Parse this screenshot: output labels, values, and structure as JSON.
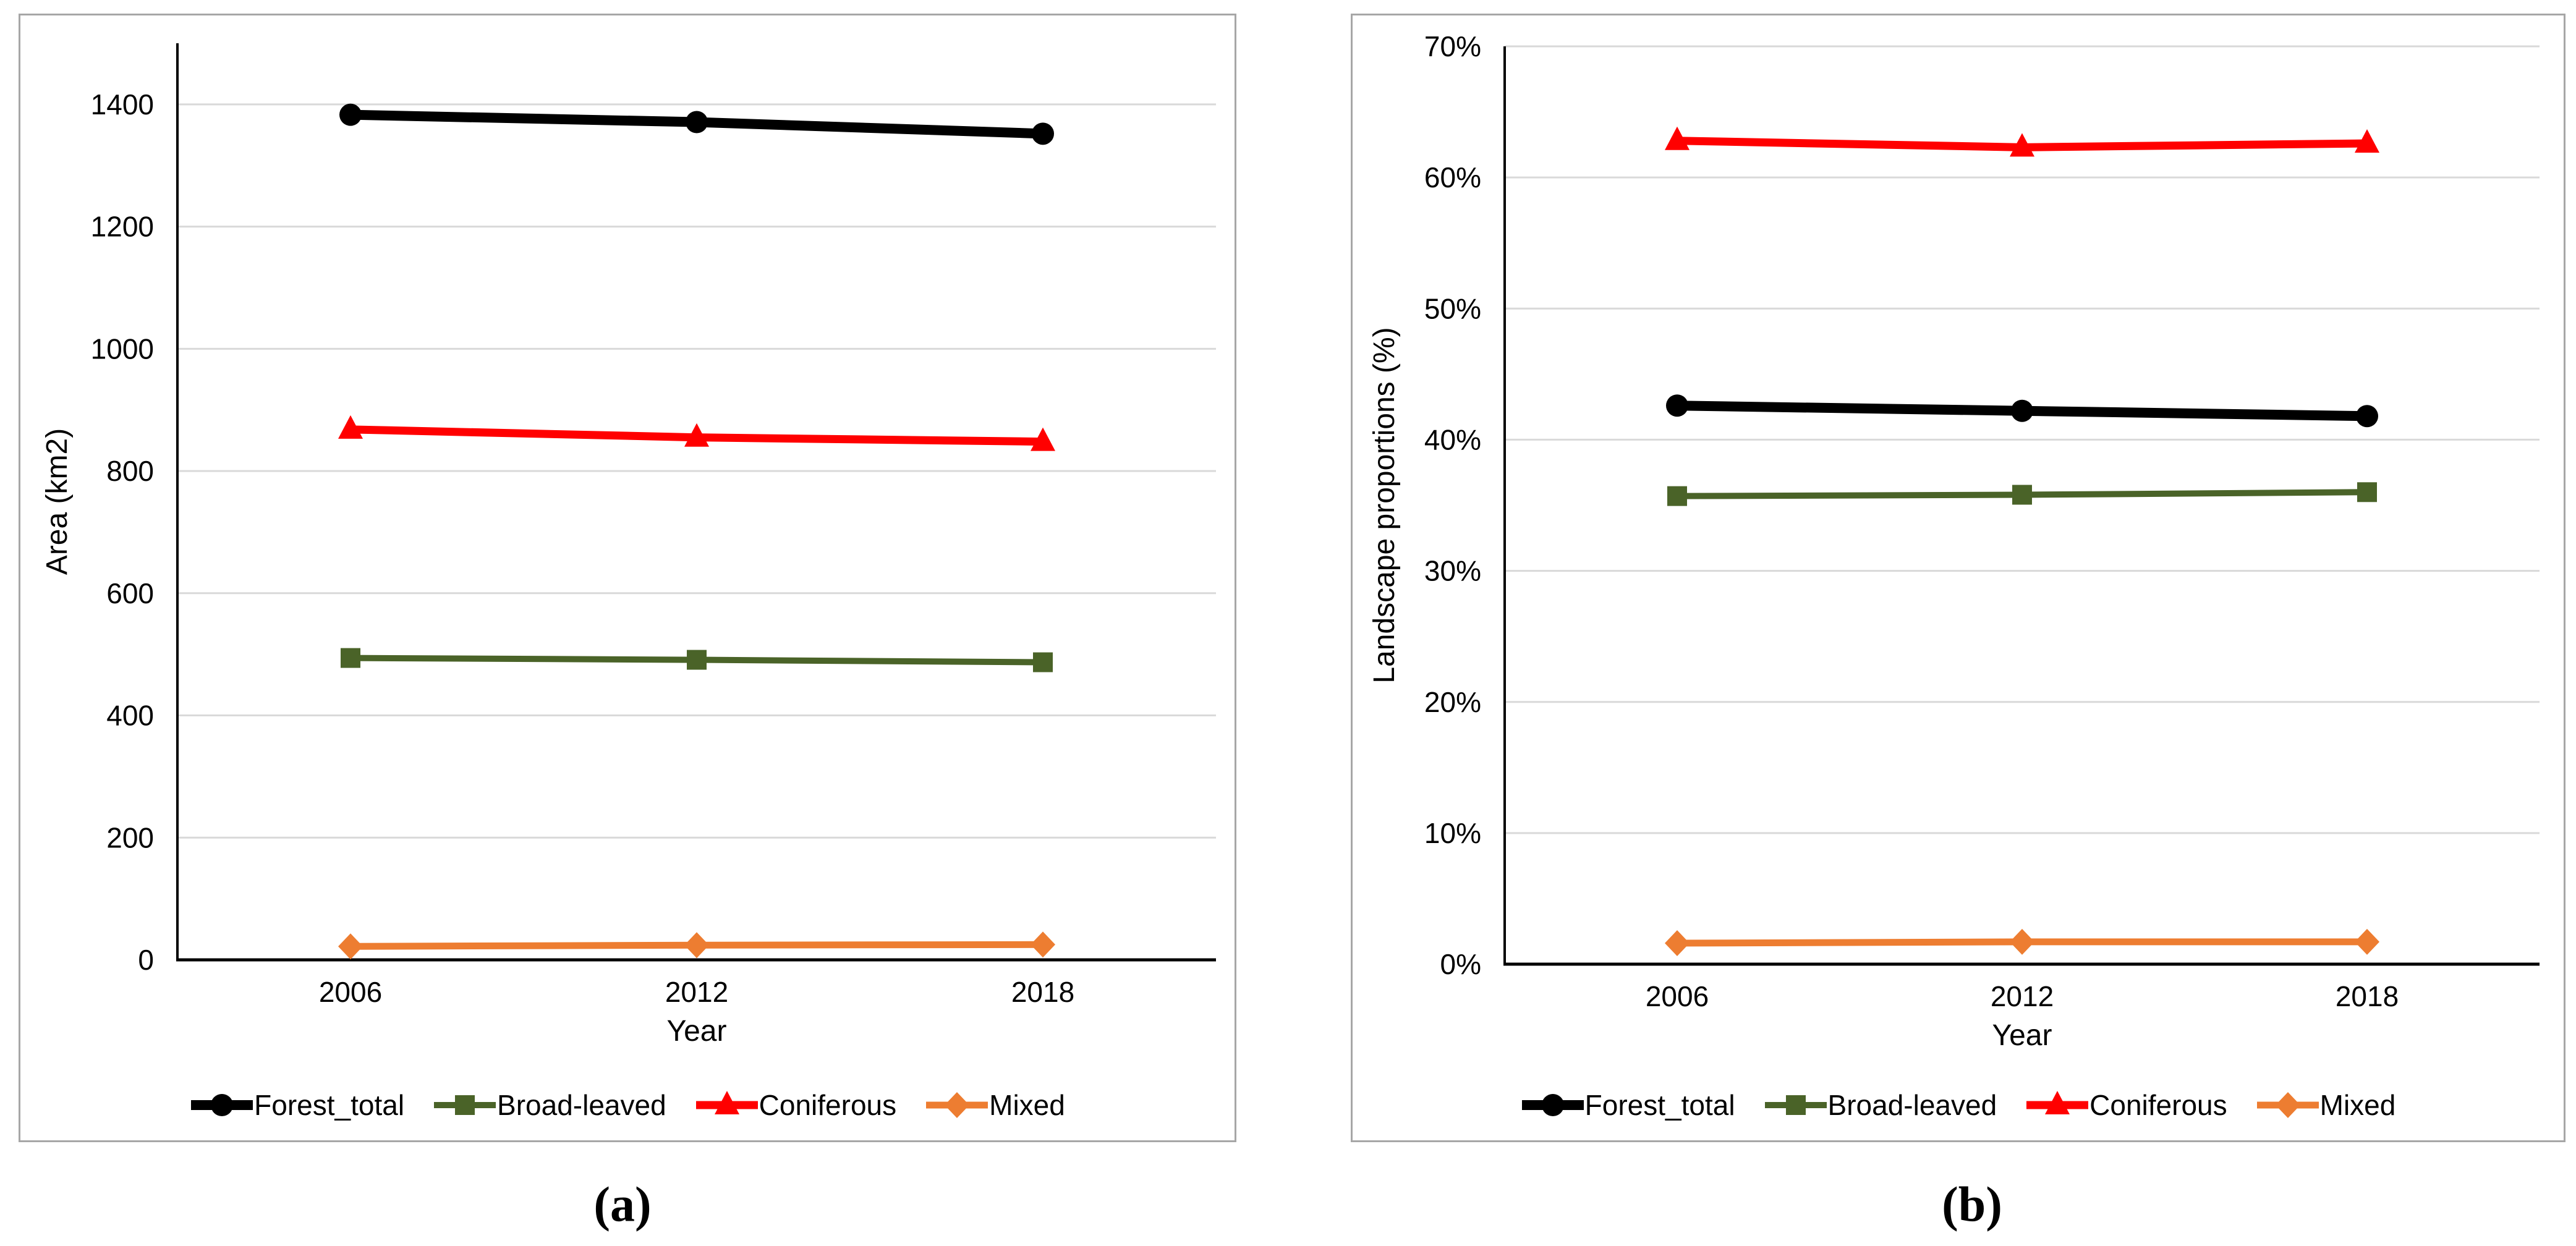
{
  "figure": {
    "captions": {
      "a": "(a)",
      "b": "(b)"
    }
  },
  "chart_data": [
    {
      "id": "a",
      "type": "line",
      "title": "",
      "x_axis": {
        "title": "Year",
        "categories": [
          "2006",
          "2012",
          "2018"
        ]
      },
      "y_axis": {
        "title": "Area (km2)",
        "min": 0,
        "max": 1500,
        "major_unit": 200,
        "ticks": [
          {
            "value": 0,
            "label": "0"
          },
          {
            "value": 200,
            "label": "200"
          },
          {
            "value": 400,
            "label": "400"
          },
          {
            "value": 600,
            "label": "600"
          },
          {
            "value": 800,
            "label": "800"
          },
          {
            "value": 1000,
            "label": "1000"
          },
          {
            "value": 1200,
            "label": "1200"
          },
          {
            "value": 1400,
            "label": "1400"
          }
        ]
      },
      "grid": true,
      "legend_position": "bottom",
      "series": [
        {
          "name": "Forest_total",
          "color": "#000000",
          "marker": "circle",
          "values": [
            1383,
            1371,
            1352
          ]
        },
        {
          "name": "Broad-leaved",
          "color": "#4A6328",
          "marker": "square",
          "values": [
            494,
            491,
            487
          ]
        },
        {
          "name": "Coniferous",
          "color": "#FF0000",
          "marker": "triangle",
          "values": [
            868,
            855,
            848
          ]
        },
        {
          "name": "Mixed",
          "color": "#ED7D31",
          "marker": "diamond",
          "values": [
            22,
            24,
            25
          ]
        }
      ]
    },
    {
      "id": "b",
      "type": "line",
      "title": "",
      "x_axis": {
        "title": "Year",
        "categories": [
          "2006",
          "2012",
          "2018"
        ]
      },
      "y_axis": {
        "title": "Landscape proportions (%)",
        "min": 0,
        "max": 70,
        "major_unit": 10,
        "ticks": [
          {
            "value": 0,
            "label": "0%"
          },
          {
            "value": 10,
            "label": "10%"
          },
          {
            "value": 20,
            "label": "20%"
          },
          {
            "value": 30,
            "label": "30%"
          },
          {
            "value": 40,
            "label": "40%"
          },
          {
            "value": 50,
            "label": "50%"
          },
          {
            "value": 60,
            "label": "60%"
          },
          {
            "value": 70,
            "label": "70%"
          }
        ]
      },
      "grid": true,
      "legend_position": "bottom",
      "series": [
        {
          "name": "Forest_total",
          "color": "#000000",
          "marker": "circle",
          "values": [
            42.6,
            42.2,
            41.8
          ]
        },
        {
          "name": "Broad-leaved",
          "color": "#4A6328",
          "marker": "square",
          "values": [
            35.7,
            35.8,
            36.0
          ]
        },
        {
          "name": "Coniferous",
          "color": "#FF0000",
          "marker": "triangle",
          "values": [
            62.8,
            62.3,
            62.6
          ]
        },
        {
          "name": "Mixed",
          "color": "#ED7D31",
          "marker": "diamond",
          "values": [
            1.6,
            1.7,
            1.7
          ]
        }
      ]
    }
  ],
  "style": {
    "gridline_color": "#D9D9D9",
    "panel_border_color": "#A6A6A6",
    "axis_color": "#000000",
    "background": "#FFFFFF"
  }
}
